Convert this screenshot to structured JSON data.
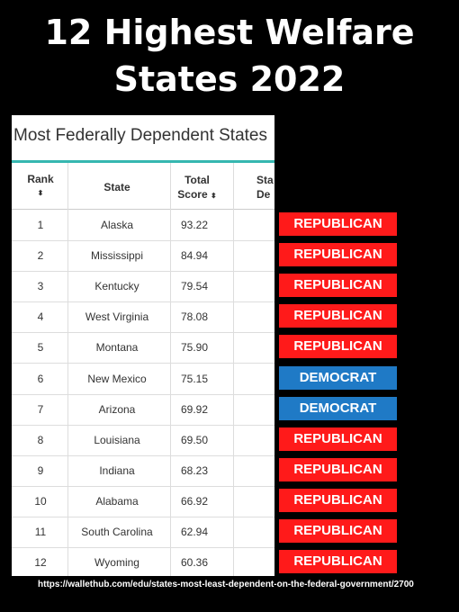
{
  "title_line1": "12 Highest Welfare",
  "title_line2": "States 2022",
  "card_title": "Most Federally Dependent States",
  "headers": {
    "rank": "Rank",
    "state": "State",
    "score_line1": "Total",
    "score_line2": "Score",
    "col4_line1": "Sta",
    "col4_line2": "De",
    "sort_arrow": "⬍"
  },
  "rows": [
    {
      "rank": "1",
      "state": "Alaska",
      "score": "93.22",
      "party": "REPUBLICAN"
    },
    {
      "rank": "2",
      "state": "Mississippi",
      "score": "84.94",
      "party": "REPUBLICAN"
    },
    {
      "rank": "3",
      "state": "Kentucky",
      "score": "79.54",
      "party": "REPUBLICAN"
    },
    {
      "rank": "4",
      "state": "West Virginia",
      "score": "78.08",
      "party": "REPUBLICAN"
    },
    {
      "rank": "5",
      "state": "Montana",
      "score": "75.90",
      "party": "REPUBLICAN"
    },
    {
      "rank": "6",
      "state": "New Mexico",
      "score": "75.15",
      "party": "DEMOCRAT"
    },
    {
      "rank": "7",
      "state": "Arizona",
      "score": "69.92",
      "party": "DEMOCRAT"
    },
    {
      "rank": "8",
      "state": "Louisiana",
      "score": "69.50",
      "party": "REPUBLICAN"
    },
    {
      "rank": "9",
      "state": "Indiana",
      "score": "68.23",
      "party": "REPUBLICAN"
    },
    {
      "rank": "10",
      "state": "Alabama",
      "score": "66.92",
      "party": "REPUBLICAN"
    },
    {
      "rank": "11",
      "state": "South Carolina",
      "score": "62.94",
      "party": "REPUBLICAN"
    },
    {
      "rank": "12",
      "state": "Wyoming",
      "score": "60.36",
      "party": "REPUBLICAN"
    }
  ],
  "colors": {
    "republican": "#ff1a1a",
    "democrat": "#1f7ac6",
    "accent": "#36b7b0"
  },
  "source_url": "https://wallethub.com/edu/states-most-least-dependent-on-the-federal-government/2700"
}
